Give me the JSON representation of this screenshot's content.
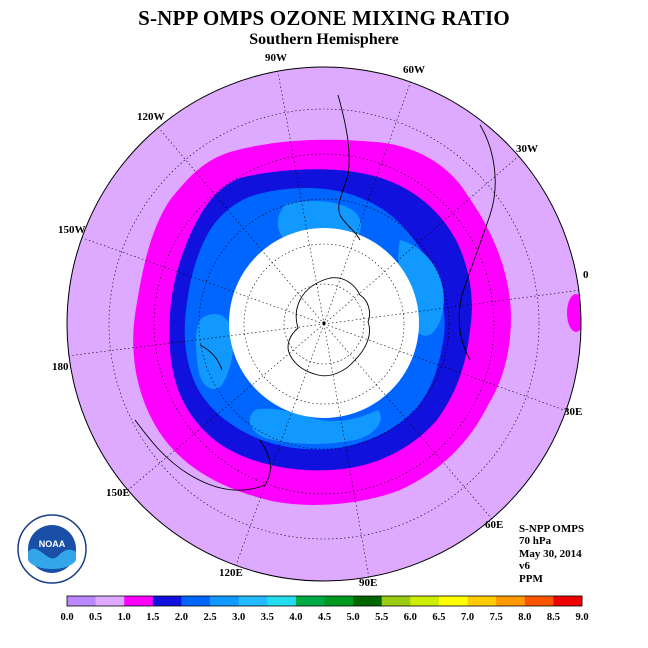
{
  "title": "S-NPP OMPS OZONE MIXING RATIO",
  "subtitle": "Southern Hemisphere",
  "longitude_labels": [
    "90W",
    "60W",
    "30W",
    "0",
    "30E",
    "60E",
    "90E",
    "120E",
    "150E",
    "180",
    "150W",
    "120W"
  ],
  "info": {
    "product": "S-NPP OMPS",
    "level": "70 hPa",
    "date": "May 30, 2014",
    "version": "v6",
    "units": "PPM"
  },
  "legend": {
    "ticks": [
      "0.0",
      "0.5",
      "1.0",
      "1.5",
      "2.0",
      "2.5",
      "3.0",
      "3.5",
      "4.0",
      "4.5",
      "5.0",
      "5.5",
      "6.0",
      "6.5",
      "7.0",
      "7.5",
      "8.0",
      "8.5",
      "9.0"
    ],
    "colors": [
      "#bb88ff",
      "#ddaaff",
      "#ff00ff",
      "#1111dd",
      "#0066ff",
      "#1199ff",
      "#22bbff",
      "#22ddee",
      "#00aa44",
      "#009922",
      "#006600",
      "#99cc11",
      "#ccee00",
      "#ffff00",
      "#ffcc00",
      "#ff9900",
      "#ff5500",
      "#ee0000",
      "#885533"
    ]
  },
  "colors": {
    "outer": "#ddaaff",
    "band_1_0": "#ff00ff",
    "band_1_5": "#1111dd",
    "band_2_0": "#0066ff",
    "band_2_5": "#1199ff",
    "polar_night": "#ffffff"
  },
  "logo_text": "NOAA"
}
